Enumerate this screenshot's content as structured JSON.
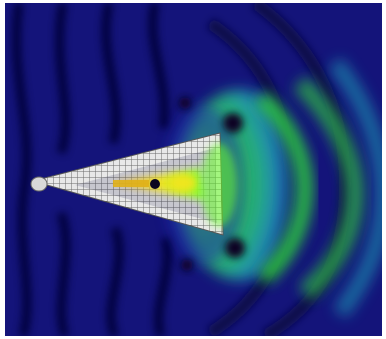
{
  "figure": {
    "colors": {
      "background_field": "#14147a",
      "deep_blue": "#0a0a55",
      "blue": "#1f2fb8",
      "cyan": "#1f8fb0",
      "green": "#2fcf3a",
      "bright_green": "#6aff2a",
      "yellow": "#f5e51a",
      "dark_node": "#0a0620",
      "mesh_fill": "#e8e8e8",
      "mesh_line": "#6a6a6a"
    }
  }
}
